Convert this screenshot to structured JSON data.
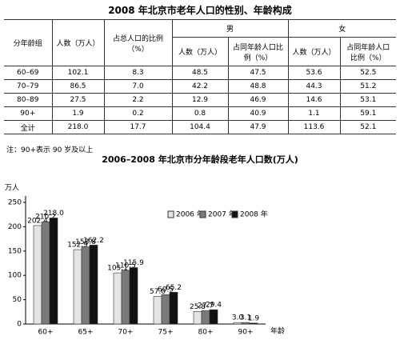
{
  "table": {
    "title": "2008 年北京市老年人口的性别、年龄构成",
    "header": {
      "group": "分年龄组",
      "count": "人数（万人）",
      "ratio": "占总人口的比例（%）",
      "male": {
        "label": "男",
        "count": "人数（万人）",
        "ratio": "占同年龄人口比例（%）"
      },
      "female": {
        "label": "女",
        "count": "人数（万人）",
        "ratio": "占同年龄人口比例（%）"
      }
    },
    "rows": [
      [
        "60–69",
        "102.1",
        "8.3",
        "48.5",
        "47.5",
        "53.6",
        "52.5"
      ],
      [
        "70–79",
        "86.5",
        "7.0",
        "42.2",
        "48.8",
        "44.3",
        "51.2"
      ],
      [
        "80–89",
        "27.5",
        "2.2",
        "12.9",
        "46.9",
        "14.6",
        "53.1"
      ],
      [
        "90+",
        "1.9",
        "0.2",
        "0.8",
        "40.9",
        "1.1",
        "59.1"
      ],
      [
        "全计",
        "218.0",
        "17.7",
        "104.4",
        "47.9",
        "113.6",
        "52.1"
      ]
    ],
    "note": "注：90+表示 90 岁及以上"
  },
  "chart_data": {
    "type": "bar",
    "title": "2006–2008 年北京市分年龄段老年人口数(万人)",
    "y_label": "万人",
    "x_label": "年龄",
    "categories": [
      "60+",
      "65+",
      "70+",
      "75+",
      "80+",
      "90+"
    ],
    "series": [
      {
        "name": "2006 年",
        "color": "#e4e4e4",
        "values": [
          202.4,
          152.9,
          105.1,
          57,
          25.8,
          3
        ],
        "value_labels": [
          "202.4",
          "152.9",
          "105.1",
          "57.0",
          "25.8",
          "3.0"
        ]
      },
      {
        "name": "2007 年",
        "color": "#7a7a7a",
        "values": [
          210.2,
          158.8,
          110.5,
          60.5,
          27.7,
          3.1
        ],
        "value_labels": [
          "210.2",
          "158.8",
          "110.5",
          "60.5",
          "27.7",
          "3.1"
        ]
      },
      {
        "name": "2008 年",
        "color": "#111111",
        "values": [
          218,
          162.2,
          115.9,
          65.2,
          29.4,
          1.9
        ],
        "value_labels": [
          "218.0",
          "162.2",
          "115.9",
          "65.2",
          "29.4",
          "1.9"
        ]
      }
    ],
    "ylim": [
      0,
      250
    ],
    "yticks": [
      0,
      50,
      100,
      150,
      200,
      250
    ]
  }
}
